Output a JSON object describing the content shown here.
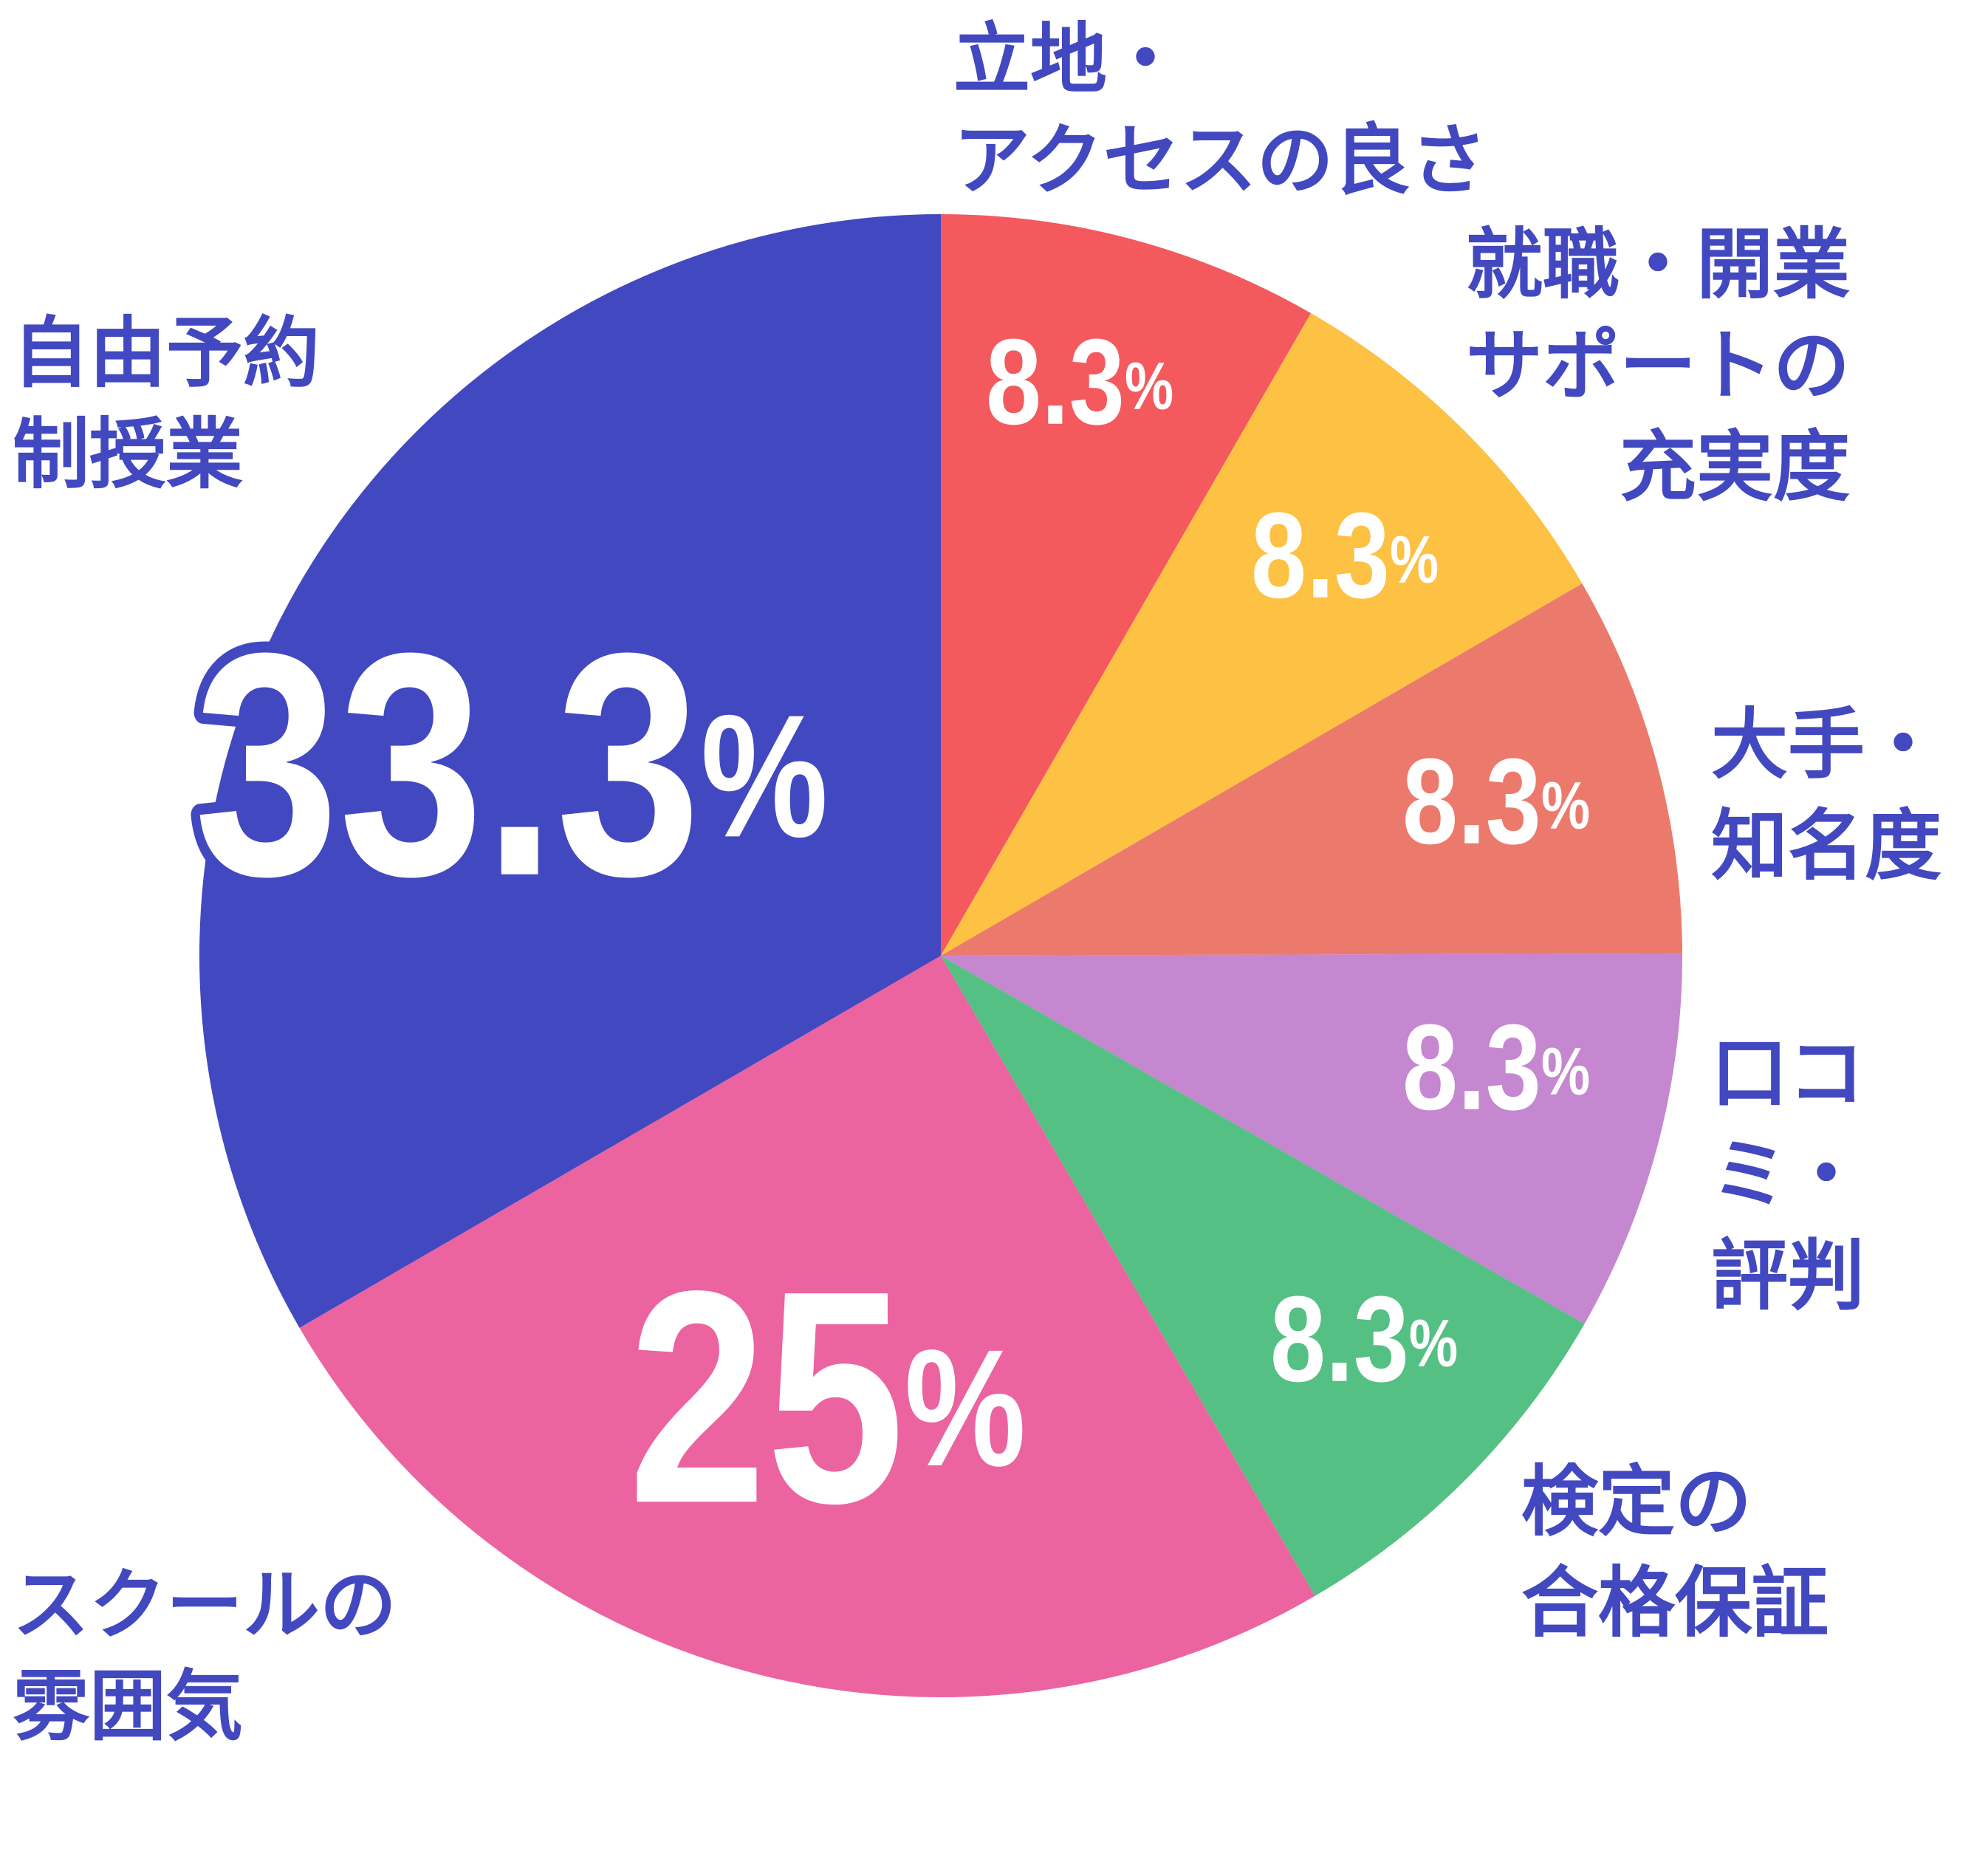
{
  "chart_data": {
    "type": "pie",
    "categories": [
      "立地・\nアクセスの良さ",
      "就職・開業\nサポートの\n充実度",
      "大手・\n知名度",
      "口コミ・\n評判",
      "検定の\n合格保証",
      "スクールの\n雰囲気",
      "自由予約\n制授業"
    ],
    "values": [
      8.3,
      8.3,
      8.3,
      8.3,
      8.3,
      25,
      33.3
    ],
    "value_labels": [
      "8.3%",
      "8.3%",
      "8.3%",
      "8.3%",
      "8.3%",
      "25%",
      "33.3%"
    ],
    "colors": [
      "#f4595e",
      "#fdc143",
      "#ec7a6c",
      "#c487d0",
      "#55c083",
      "#eb64a0",
      "#4248c0"
    ]
  }
}
